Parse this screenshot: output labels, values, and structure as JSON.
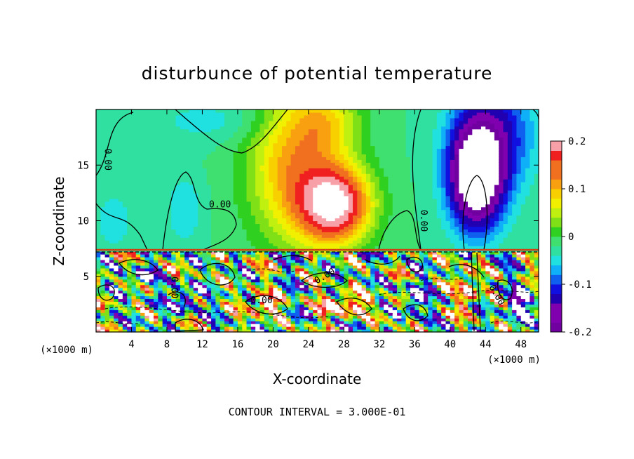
{
  "chart_data": {
    "type": "heatmap",
    "title": "disturbunce of potential temperature",
    "xlabel": "X-coordinate",
    "ylabel": "Z-coordinate",
    "x_unit": "(×1000 m)",
    "z_unit": "(×1000 m)",
    "xlim": [
      0,
      50
    ],
    "ylim": [
      0,
      20
    ],
    "x_ticks": [
      4,
      8,
      12,
      16,
      20,
      24,
      28,
      32,
      36,
      40,
      44,
      48
    ],
    "y_ticks": [
      5,
      10,
      15
    ],
    "colorbar": {
      "range": [
        -0.2,
        0.2
      ],
      "ticks": [
        {
          "value": 0.2,
          "label": "0.2"
        },
        {
          "value": 0.1,
          "label": "0.1"
        },
        {
          "value": 0,
          "label": "0"
        },
        {
          "value": -0.1,
          "label": "-0.1"
        },
        {
          "value": -0.2,
          "label": "-0.2"
        }
      ]
    },
    "contour_labels": [
      {
        "text": "0.00",
        "x": 1,
        "z": 15.5,
        "rotate": 90
      },
      {
        "text": "0.00",
        "x": 14,
        "z": 11.2,
        "rotate": 0
      },
      {
        "text": "0.00",
        "x": 36.7,
        "z": 10,
        "rotate": 90
      },
      {
        "text": "0.00",
        "x": 8.5,
        "z": 4,
        "rotate": 90
      },
      {
        "text": "0.00",
        "x": 18.7,
        "z": 2.6,
        "rotate": 0
      },
      {
        "text": "0.00",
        "x": 26,
        "z": 4.8,
        "rotate": -30
      },
      {
        "text": "0.00",
        "x": 45,
        "z": 3.2,
        "rotate": 60
      }
    ],
    "field": {
      "background": -0.02,
      "upper_features": [
        {
          "x": 27,
          "z": 11.5,
          "sx": 4,
          "sz": 3.5,
          "amp": 0.24
        },
        {
          "x": 22,
          "z": 15,
          "sx": 5,
          "sz": 7,
          "amp": 0.12
        },
        {
          "x": 26,
          "z": 19,
          "sx": 4,
          "sz": 3,
          "amp": 0.08
        },
        {
          "x": 43,
          "z": 14,
          "sx": 3,
          "sz": 4.5,
          "amp": -0.27
        },
        {
          "x": 45,
          "z": 18,
          "sx": 4.5,
          "sz": 5,
          "amp": -0.1
        },
        {
          "x": 10,
          "z": 11,
          "sx": 2,
          "sz": 3,
          "amp": -0.04
        },
        {
          "x": 2,
          "z": 10,
          "sx": 2.5,
          "sz": 3,
          "amp": -0.03
        },
        {
          "x": 14,
          "z": 19,
          "sx": 8,
          "sz": 2,
          "amp": -0.03
        }
      ],
      "lower_features": [
        {
          "x": 5,
          "z": 5,
          "sx": 1.2,
          "sz": 0.8,
          "amp": -0.25
        },
        {
          "x": 10,
          "z": 3,
          "sx": 1.3,
          "sz": 1.2,
          "amp": -0.22
        },
        {
          "x": 19,
          "z": 2.5,
          "sx": 2,
          "sz": 0.8,
          "amp": 0.25
        },
        {
          "x": 28,
          "z": 2.5,
          "sx": 2.5,
          "sz": 1,
          "amp": 0.25
        },
        {
          "x": 36,
          "z": 3,
          "sx": 1,
          "sz": 1.5,
          "amp": -0.25
        },
        {
          "x": 42,
          "z": 4,
          "sx": 1,
          "sz": 2,
          "amp": 0.25
        },
        {
          "x": 48,
          "z": 2.5,
          "sx": 1.5,
          "sz": 1.5,
          "amp": -0.22
        }
      ]
    }
  },
  "footer": {
    "contour_interval": "CONTOUR INTERVAL = 3.000E-01"
  }
}
